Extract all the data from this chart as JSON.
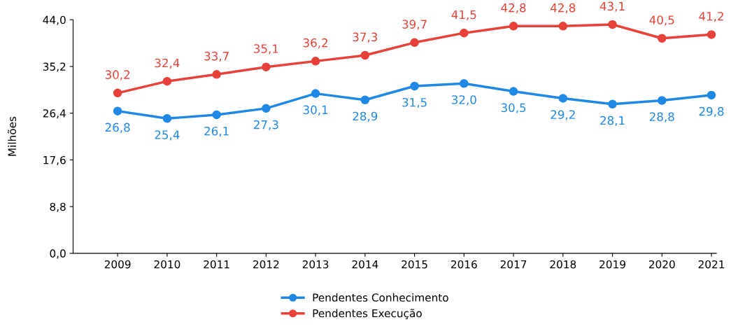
{
  "chart_data": {
    "type": "line",
    "ylabel": "Milhões",
    "categories": [
      "2009",
      "2010",
      "2011",
      "2012",
      "2013",
      "2014",
      "2015",
      "2016",
      "2017",
      "2018",
      "2019",
      "2020",
      "2021"
    ],
    "ylim": [
      0,
      44
    ],
    "yticks": [
      {
        "value": 0,
        "label": "0,0"
      },
      {
        "value": 8.8,
        "label": "8,8"
      },
      {
        "value": 17.6,
        "label": "17,6"
      },
      {
        "value": 26.4,
        "label": "26,4"
      },
      {
        "value": 35.2,
        "label": "35,2"
      },
      {
        "value": 44,
        "label": "44,0"
      }
    ],
    "series": [
      {
        "name": "Pendentes Conhecimento",
        "color": "#1e88e5",
        "values": [
          26.8,
          25.4,
          26.1,
          27.3,
          30.1,
          28.9,
          31.5,
          32.0,
          30.5,
          29.2,
          28.1,
          28.8,
          29.8
        ],
        "value_labels": [
          "26,8",
          "25,4",
          "26,1",
          "27,3",
          "30,1",
          "28,9",
          "31,5",
          "32,0",
          "30,5",
          "29,2",
          "28,1",
          "28,8",
          "29,8"
        ]
      },
      {
        "name": "Pendentes Execução",
        "color": "#e8413a",
        "values": [
          30.2,
          32.4,
          33.7,
          35.1,
          36.2,
          37.3,
          39.7,
          41.5,
          42.8,
          42.8,
          43.1,
          40.5,
          41.2
        ],
        "value_labels": [
          "30,2",
          "32,4",
          "33,7",
          "35,1",
          "36,2",
          "37,3",
          "39,7",
          "41,5",
          "42,8",
          "42,8",
          "43,1",
          "40,5",
          "41,2"
        ]
      }
    ],
    "marker": "circle",
    "line_style": "solid",
    "grid": false,
    "legend": "bottom"
  }
}
